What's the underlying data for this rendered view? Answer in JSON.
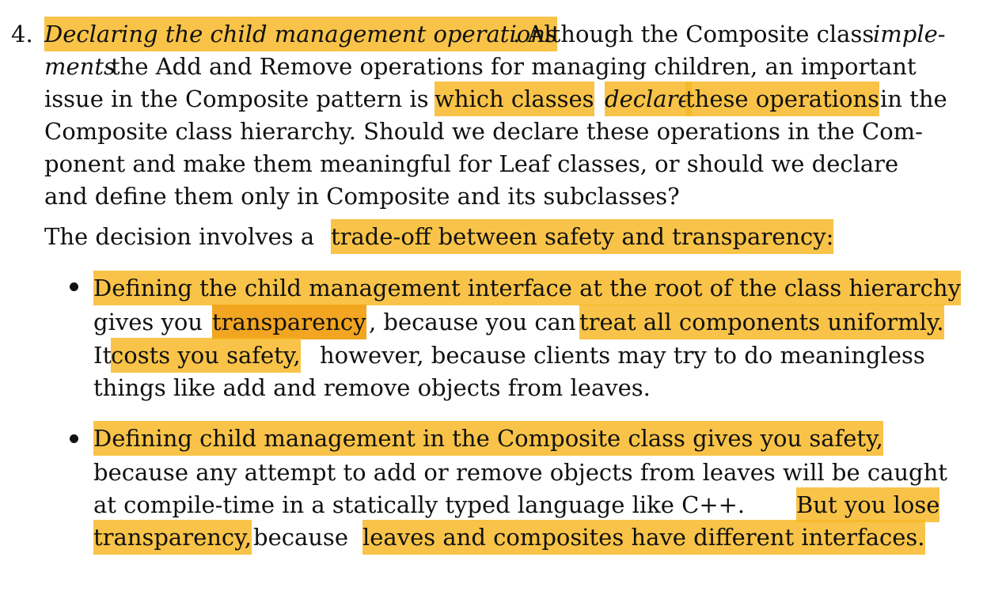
{
  "item_number": "4.",
  "paragraph1": {
    "line1": {
      "heading": "Declaring the child management operations",
      "after_heading": ". Although the Composite class ",
      "italic_end": "imple-"
    },
    "line2": {
      "italic_start": "ments",
      "rest": " the Add and Remove operations for managing children, an important"
    },
    "line3": {
      "before": "issue in the Composite pattern is ",
      "hl_before": "which classes ",
      "hl_italic": "declare",
      "hl_after": " these operations",
      "after": " in the"
    },
    "line4": "Composite class hierarchy. Should we declare these operations in the Com-",
    "line5": "ponent and make them meaningful for Leaf classes, or should we declare",
    "line6": "and define them only in Composite and its subclasses?"
  },
  "paragraph2": {
    "before": "The decision involves a ",
    "highlight": "trade-off between safety and transparency:"
  },
  "bullet1": {
    "line1": "Defining the child management interface at the root of the class hierarchy",
    "line2": {
      "before": "gives you ",
      "hl1": "transparency",
      "middle": ", because you can ",
      "hl2": "treat all components uniformly."
    },
    "line3": {
      "before": "It ",
      "highlight": "costs you safety,",
      "after": " however, because clients may try to do meaningless"
    },
    "line4": "things like add and remove objects from leaves."
  },
  "bullet2": {
    "line1": "Defining child management in the Composite class gives you safety,",
    "line2": "because any attempt to add or remove objects from leaves will be caught",
    "line3": {
      "before": "at compile-time in a statically typed language like C++. ",
      "highlight": "But you lose"
    },
    "line4": {
      "hl1": "transparency,",
      "middle": " because ",
      "hl2": "leaves and composites have different interfaces."
    }
  },
  "colors": {
    "highlight": "#f7b928",
    "highlight_strong": "#f1a014",
    "text": "#111111"
  }
}
